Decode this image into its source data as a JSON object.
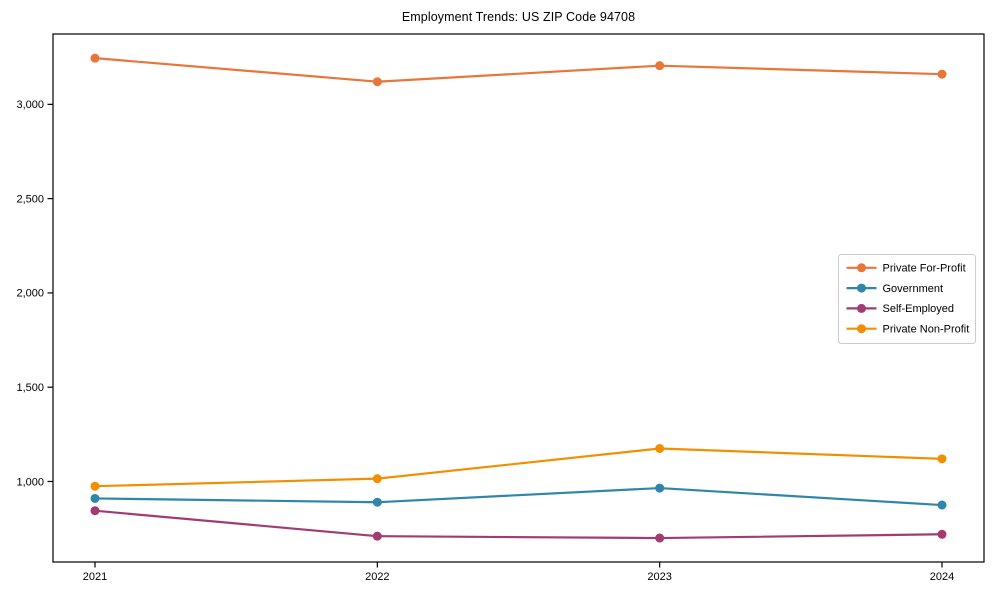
{
  "figure": {
    "title": "Employment Trends: US ZIP Code 94708"
  },
  "chart_data": {
    "type": "line",
    "title": "Employment Trends: US ZIP Code 94708",
    "x": [
      2021,
      2022,
      2023,
      2024
    ],
    "xtick_labels": [
      "2021",
      "2022",
      "2023",
      "2024"
    ],
    "xlabel": "",
    "ylabel": "",
    "series": [
      {
        "name": "Private For-Profit",
        "color": "#E8763B",
        "marker": "circle",
        "values": [
          3245,
          3120,
          3205,
          3160
        ]
      },
      {
        "name": "Government",
        "color": "#2E86AB",
        "marker": "circle",
        "values": [
          910,
          890,
          965,
          875
        ]
      },
      {
        "name": "Self-Employed",
        "color": "#A23B72",
        "marker": "circle",
        "values": [
          845,
          710,
          700,
          720
        ]
      },
      {
        "name": "Private Non-Profit",
        "color": "#F18F01",
        "marker": "circle",
        "values": [
          975,
          1015,
          1175,
          1120
        ]
      }
    ],
    "ylim": [
      573,
      3373
    ],
    "yticks": [
      1000,
      1500,
      2000,
      2500,
      3000
    ],
    "ytick_labels": [
      "1,000",
      "1,500",
      "2,000",
      "2,500",
      "3,000"
    ],
    "grid": false,
    "legend": {
      "position": "right-inside",
      "entries": [
        "Private For-Profit",
        "Government",
        "Self-Employed",
        "Private Non-Profit"
      ]
    },
    "axis_color": "#000000",
    "background": "#ffffff"
  }
}
